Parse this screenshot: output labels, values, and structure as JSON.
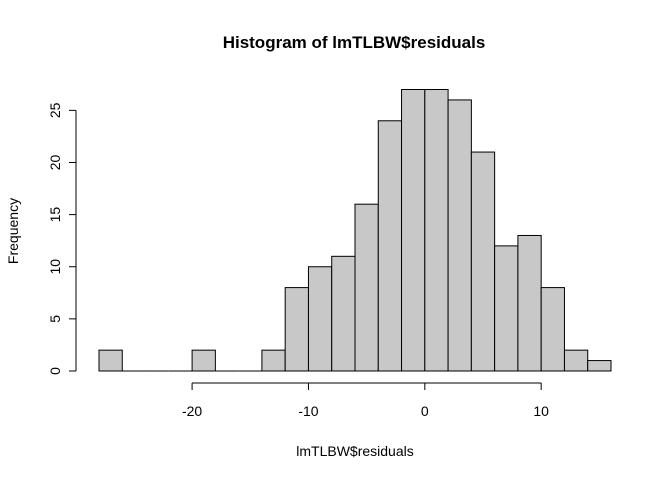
{
  "chart_data": {
    "type": "bar",
    "title": "Histogram of lmTLBW$residuals",
    "xlabel": "lmTLBW$residuals",
    "ylabel": "Frequency",
    "bin_edges": [
      -28,
      -26,
      -24,
      -22,
      -20,
      -18,
      -16,
      -14,
      -12,
      -10,
      -8,
      -6,
      -4,
      -2,
      0,
      2,
      4,
      6,
      8,
      10,
      12,
      14,
      16
    ],
    "values": [
      2,
      0,
      0,
      0,
      2,
      0,
      0,
      2,
      8,
      10,
      11,
      16,
      24,
      27,
      27,
      26,
      21,
      12,
      13,
      8,
      2,
      1
    ],
    "xlim": [
      -28,
      16
    ],
    "ylim": [
      0,
      27
    ],
    "xticks": [
      -20,
      -10,
      0,
      10
    ],
    "yticks": [
      0,
      5,
      10,
      15,
      20,
      25
    ],
    "colors": {
      "bar_fill": "#c8c8c8",
      "bar_stroke": "#000000"
    },
    "grid": false,
    "legend": "none"
  }
}
